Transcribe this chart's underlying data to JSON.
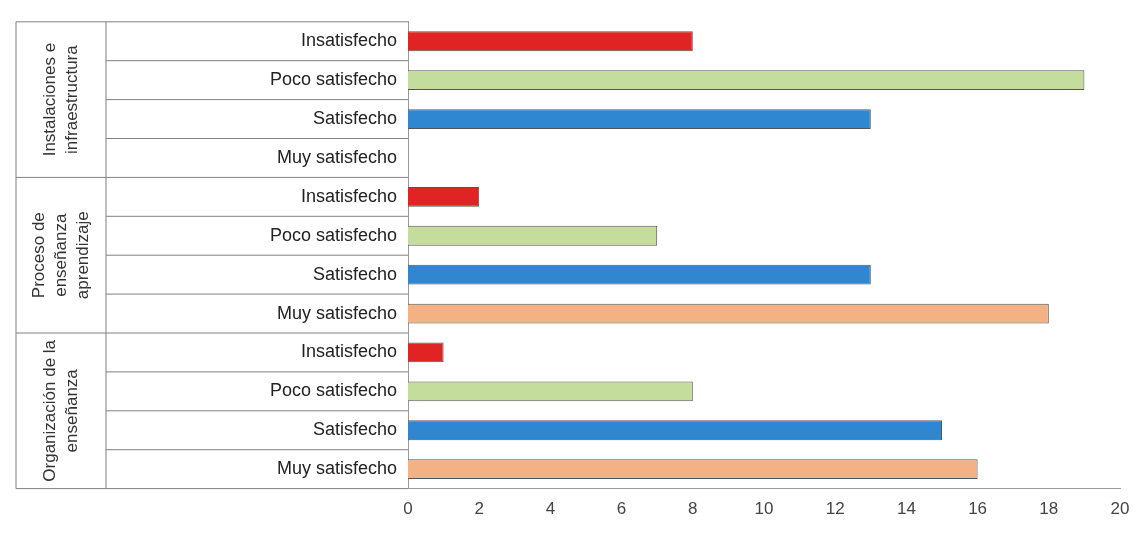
{
  "chart_data": {
    "type": "bar",
    "orientation": "horizontal",
    "categories": [
      "Insatisfecho",
      "Poco satisfecho",
      "Satisfecho",
      "Muy satisfecho",
      "Insatisfecho",
      "Poco satisfecho",
      "Satisfecho",
      "Muy satisfecho",
      "Insatisfecho",
      "Poco satisfecho",
      "Satisfecho",
      "Muy satisfecho"
    ],
    "values": [
      8,
      19,
      13,
      0,
      2,
      7,
      13,
      18,
      1,
      8,
      15,
      16
    ],
    "colors": [
      "#e02424",
      "#c4dd9c",
      "#2f86d1",
      "#f4b183",
      "#e02424",
      "#c4dd9c",
      "#2f86d1",
      "#f4b183",
      "#e02424",
      "#c4dd9c",
      "#2f86d1",
      "#f4b183"
    ],
    "xlim": [
      0,
      20
    ],
    "xticks": [
      0,
      2,
      4,
      6,
      8,
      10,
      12,
      14,
      16,
      18,
      20
    ],
    "grid": false,
    "legend": false,
    "annotations": [
      "Instalaciones e infraestructura",
      "Proceso de enseñanza aprendizaje",
      "Organización de la enseñanza"
    ]
  }
}
